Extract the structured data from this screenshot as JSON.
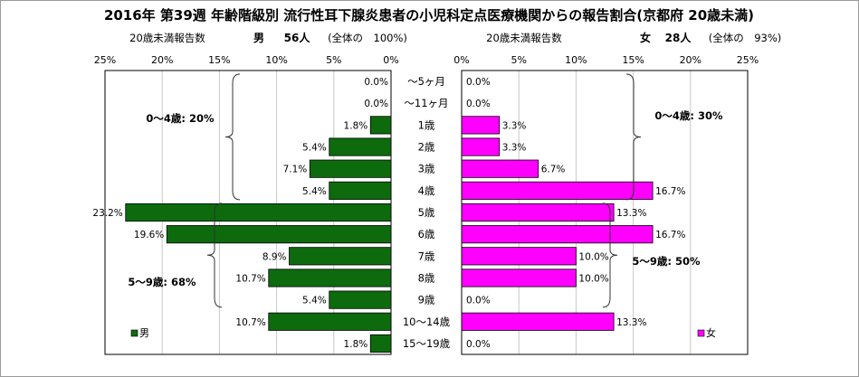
{
  "title": "2016年 第39週 年齢階級別 流行性耳下腺炎患者の小児科定点医療機関からの報告割合(京都府 20歳未満)",
  "left_panel": {
    "caption": "20歳未満報告数",
    "sex_label": "男",
    "count_label": "56人",
    "share_label": "(全体の　100%)"
  },
  "right_panel": {
    "caption": "20歳未満報告数",
    "sex_label": "女",
    "count_label": "28人",
    "share_label": "(全体の　93%)"
  },
  "annotations": {
    "male_0_4": "0～4歳: 20%",
    "male_5_9": "5～9歳: 68%",
    "female_0_4": "0～4歳: 30%",
    "female_5_9": "5～9歳: 50%"
  },
  "chart_data": {
    "type": "bar",
    "orientation": "horizontal",
    "layout": "population-pyramid",
    "categories": [
      "～5ヶ月",
      "～11ヶ月",
      "1歳",
      "2歳",
      "3歳",
      "4歳",
      "5歳",
      "6歳",
      "7歳",
      "8歳",
      "9歳",
      "10～14歳",
      "15～19歳"
    ],
    "series": [
      {
        "name": "男",
        "color": "#0d6b0d",
        "values": [
          0.0,
          0.0,
          1.8,
          5.4,
          7.1,
          5.4,
          23.2,
          19.6,
          8.9,
          10.7,
          5.4,
          10.7,
          1.8
        ],
        "labels": [
          "0.0%",
          "0.0%",
          "1.8%",
          "5.4%",
          "7.1%",
          "5.4%",
          "23.2%",
          "19.6%",
          "8.9%",
          "10.7%",
          "5.4%",
          "10.7%",
          "1.8%"
        ]
      },
      {
        "name": "女",
        "color": "#ff00ff",
        "values": [
          0.0,
          0.0,
          3.3,
          3.3,
          6.7,
          16.7,
          13.3,
          16.7,
          10.0,
          10.0,
          0.0,
          13.3,
          0.0
        ],
        "labels": [
          "0.0%",
          "0.0%",
          "3.3%",
          "3.3%",
          "6.7%",
          "16.7%",
          "13.3%",
          "16.7%",
          "10.0%",
          "10.0%",
          "0.0%",
          "13.3%",
          "0.0%"
        ]
      }
    ],
    "xlim": [
      0,
      25
    ],
    "xticks": [
      0,
      5,
      10,
      15,
      20,
      25
    ],
    "xtick_labels": [
      "0%",
      "5%",
      "10%",
      "15%",
      "20%",
      "25%"
    ],
    "grid": true,
    "legend": [
      "男",
      "女"
    ]
  }
}
